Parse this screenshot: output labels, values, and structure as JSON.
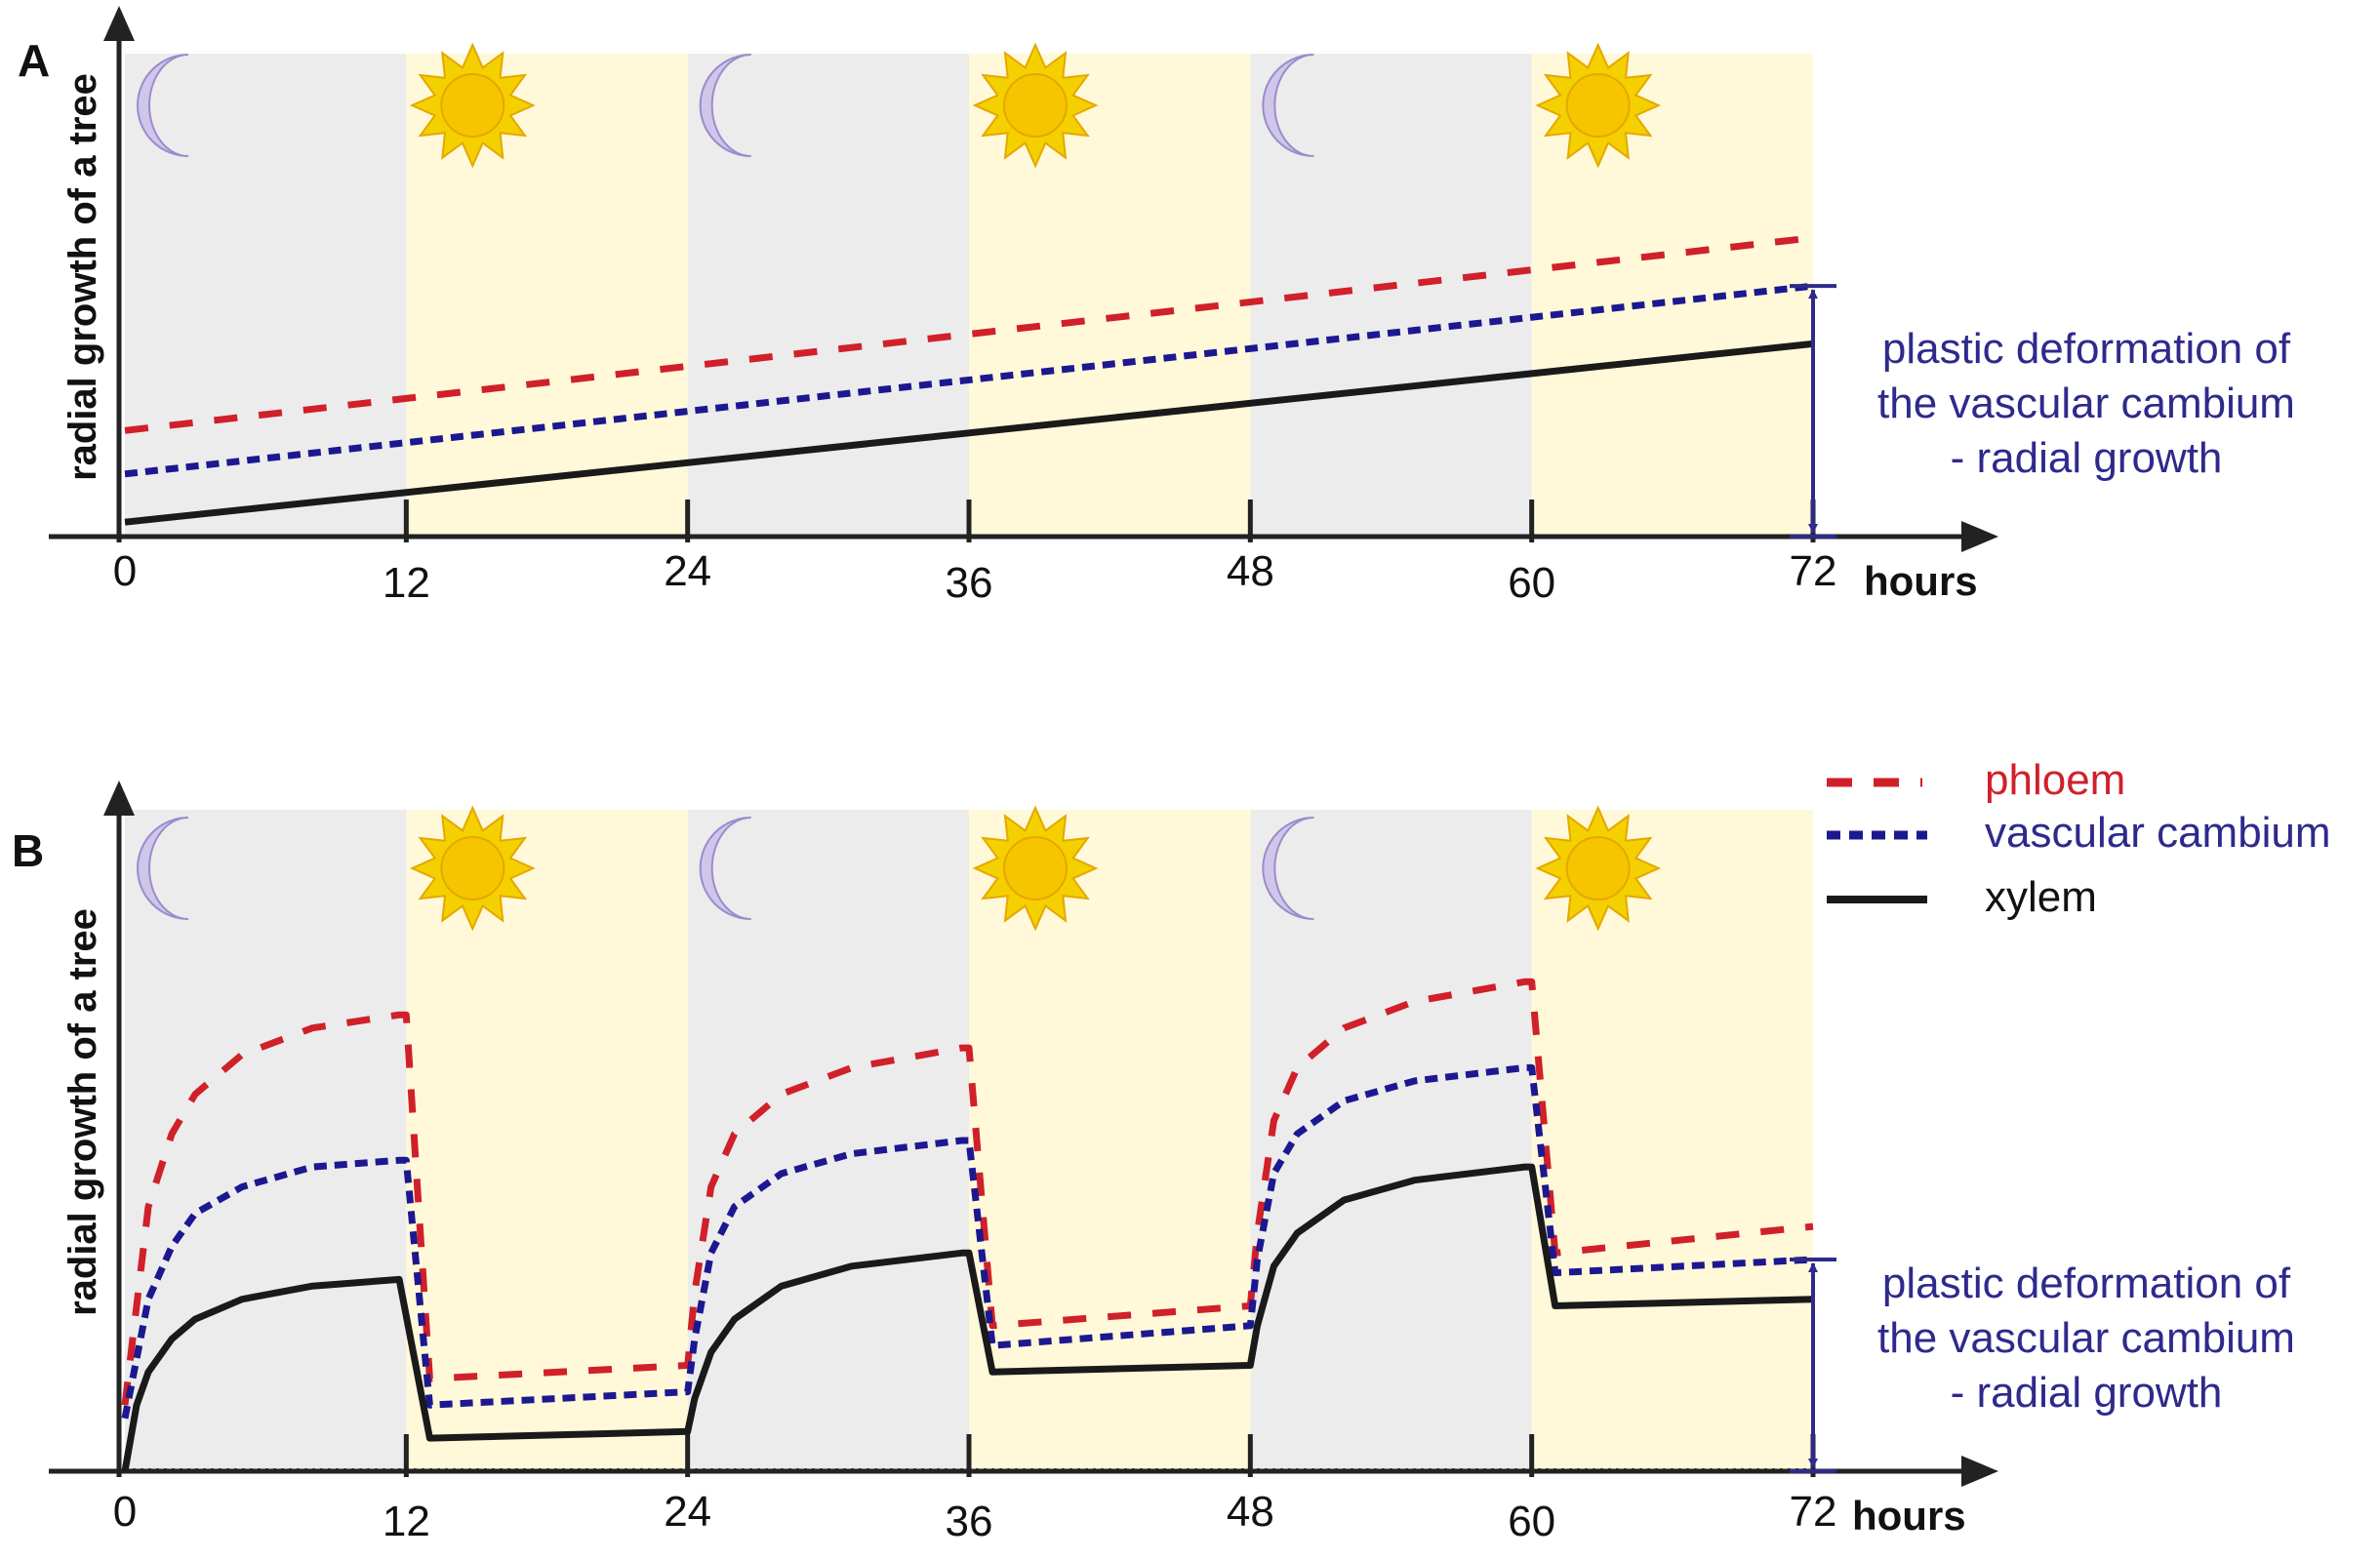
{
  "colors": {
    "phloem": "#d0202a",
    "cambium": "#1c1890",
    "xylem": "#1a1a1a",
    "night_band": "#ececec",
    "day_band": "#fff9d9",
    "annotation": "#2e2a8c",
    "arrow": "#2e2a8c",
    "sun": "#f7c400",
    "moon": "#cfc6ea"
  },
  "legend": {
    "phloem": "phloem",
    "cambium": "vascular cambium",
    "xylem": "xylem"
  },
  "chart_data": [
    {
      "panel_label": "A",
      "type": "line",
      "ylabel": "radial growth of a tree",
      "xlabel": "hours",
      "xlim": [
        0,
        72
      ],
      "ylim": [
        0,
        100
      ],
      "x_ticks": [
        "0",
        "12",
        "24",
        "36",
        "48",
        "60",
        "72"
      ],
      "day_night": [
        "night",
        "day",
        "night",
        "day",
        "night",
        "day"
      ],
      "annotation_lines": [
        "plastic deformation of",
        "the vascular cambium",
        "- radial growth"
      ],
      "series": [
        {
          "name": "phloem",
          "style": "dashed",
          "x": [
            0,
            72
          ],
          "y": [
            22,
            62
          ]
        },
        {
          "name": "vascular cambium",
          "style": "dotted",
          "x": [
            0,
            72
          ],
          "y": [
            13,
            52
          ]
        },
        {
          "name": "xylem",
          "style": "solid",
          "x": [
            0,
            72
          ],
          "y": [
            3,
            40
          ]
        }
      ]
    },
    {
      "panel_label": "B",
      "type": "line",
      "ylabel": "radial growth of a tree",
      "xlabel": "hours",
      "xlim": [
        0,
        72
      ],
      "ylim": [
        0,
        100
      ],
      "x_ticks": [
        "0",
        "12",
        "24",
        "36",
        "48",
        "60",
        "72"
      ],
      "day_night": [
        "night",
        "day",
        "night",
        "day",
        "night",
        "day"
      ],
      "annotation_lines": [
        "plastic deformation of",
        "the vascular cambium",
        "- radial growth"
      ],
      "series": [
        {
          "name": "phloem",
          "style": "dashed",
          "x": [
            0,
            1,
            2,
            3,
            5,
            8,
            11.7,
            12,
            13,
            24,
            24.3,
            25,
            26,
            28,
            31,
            35.7,
            36,
            37,
            48,
            48.3,
            49,
            50,
            52,
            55,
            59.7,
            60,
            61,
            72
          ],
          "y": [
            10,
            40,
            51,
            57,
            63,
            67,
            69,
            69,
            14,
            16,
            27,
            43,
            51,
            57,
            61,
            64,
            64,
            22,
            25,
            36,
            53,
            61,
            67,
            71,
            74,
            74,
            33,
            37
          ]
        },
        {
          "name": "vascular cambium",
          "style": "dotted",
          "x": [
            0,
            1,
            2,
            3,
            5,
            8,
            11.7,
            12,
            13,
            24,
            24.3,
            25,
            26,
            28,
            31,
            35.7,
            36,
            37,
            48,
            48.3,
            49,
            50,
            52,
            55,
            59.7,
            60,
            61,
            72
          ],
          "y": [
            8,
            26,
            34,
            39,
            43,
            46,
            47,
            47,
            10,
            12,
            20,
            33,
            40,
            45,
            48,
            50,
            50,
            19,
            22,
            32,
            45,
            51,
            56,
            59,
            61,
            61,
            30,
            32
          ]
        },
        {
          "name": "xylem",
          "style": "solid",
          "x": [
            0,
            0.5,
            1,
            2,
            3,
            5,
            8,
            11.7,
            13,
            24,
            24.3,
            25,
            26,
            28,
            31,
            35.7,
            36,
            37,
            48,
            48.3,
            49,
            50,
            52,
            55,
            59.7,
            60,
            61,
            72
          ],
          "y": [
            0,
            10,
            15,
            20,
            23,
            26,
            28,
            29,
            5,
            6,
            11,
            18,
            23,
            28,
            31,
            33,
            33,
            15,
            16,
            22,
            31,
            36,
            41,
            44,
            46,
            46,
            25,
            26
          ]
        }
      ]
    }
  ]
}
